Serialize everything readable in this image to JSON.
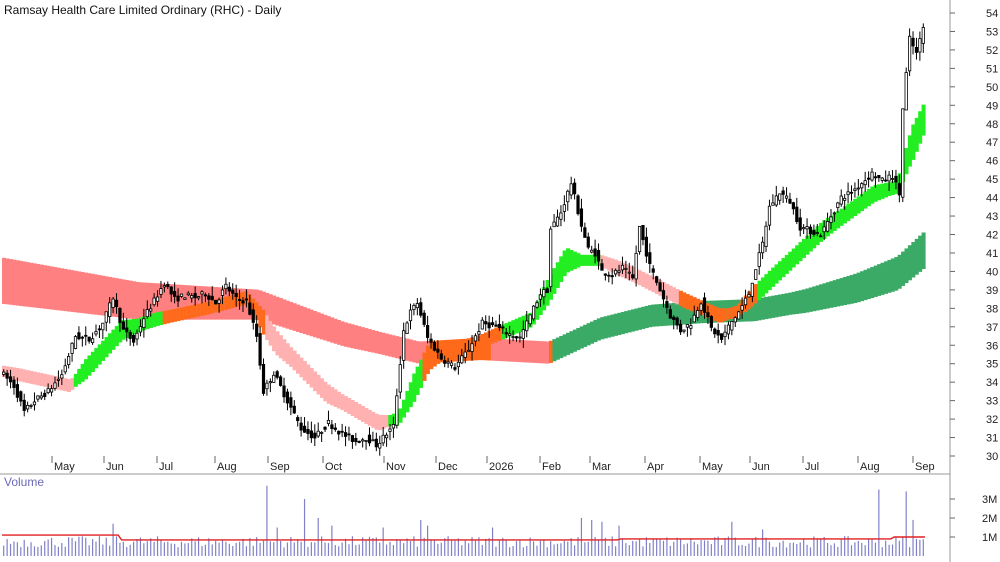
{
  "chart_data": [
    {
      "type": "candlestick",
      "title": "Ramsay Health Care Limited Ordinary (RHC) - Daily",
      "ylim": [
        30,
        54
      ],
      "y_ticks": [
        30,
        31,
        32,
        33,
        34,
        35,
        36,
        37,
        38,
        39,
        40,
        41,
        42,
        43,
        44,
        45,
        46,
        47,
        48,
        49,
        50,
        51,
        52,
        53,
        54
      ],
      "x_ticks": [
        "May",
        "Jun",
        "Jul",
        "Aug",
        "Sep",
        "Oct",
        "Nov",
        "Dec",
        "2026",
        "Feb",
        "Mar",
        "Apr",
        "May",
        "Jun",
        "Jul",
        "Aug",
        "Sep"
      ],
      "grid": false,
      "colors": {
        "price": "#000000",
        "ribbon_short_up": "#22ee22",
        "ribbon_short_down": "#ffb0b0",
        "ribbon_long_up": "#3aaa66",
        "ribbon_long_down": "#ff8080",
        "ribbon_transition": "#ff6a1a"
      },
      "price_path": [
        [
          0,
          34.6
        ],
        [
          4,
          33.8
        ],
        [
          7,
          32.4
        ],
        [
          10,
          33.0
        ],
        [
          14,
          33.5
        ],
        [
          18,
          34.4
        ],
        [
          22,
          36.5
        ],
        [
          26,
          36.3
        ],
        [
          30,
          37.2
        ],
        [
          33,
          38.6
        ],
        [
          36,
          36.8
        ],
        [
          39,
          36.2
        ],
        [
          42,
          37.5
        ],
        [
          45,
          38.4
        ],
        [
          48,
          39.4
        ],
        [
          51,
          38.5
        ],
        [
          54,
          38.7
        ],
        [
          57,
          38.6
        ],
        [
          60,
          38.8
        ],
        [
          63,
          38.3
        ],
        [
          66,
          39.2
        ],
        [
          69,
          38.5
        ],
        [
          72,
          38.4
        ],
        [
          75,
          36.5
        ],
        [
          77,
          33.5
        ],
        [
          80,
          34.5
        ],
        [
          84,
          33.0
        ],
        [
          88,
          31.5
        ],
        [
          92,
          31.0
        ],
        [
          96,
          31.8
        ],
        [
          100,
          31.2
        ],
        [
          104,
          30.8
        ],
        [
          107,
          31.0
        ],
        [
          110,
          30.6
        ],
        [
          113,
          31.2
        ],
        [
          115,
          31.6
        ],
        [
          118,
          36.8
        ],
        [
          120,
          37.8
        ],
        [
          122,
          38.3
        ],
        [
          125,
          36.4
        ],
        [
          129,
          35.3
        ],
        [
          133,
          34.8
        ],
        [
          137,
          35.8
        ],
        [
          141,
          37.2
        ],
        [
          145,
          37.0
        ],
        [
          149,
          36.6
        ],
        [
          152,
          36.4
        ],
        [
          155,
          37.6
        ],
        [
          158,
          38.8
        ],
        [
          160,
          39.0
        ],
        [
          161,
          42.3
        ],
        [
          164,
          43.2
        ],
        [
          167,
          44.8
        ],
        [
          170,
          42.5
        ],
        [
          172,
          41.2
        ],
        [
          174,
          41.0
        ],
        [
          176,
          40.0
        ],
        [
          179,
          39.8
        ],
        [
          182,
          40.2
        ],
        [
          185,
          39.6
        ],
        [
          187,
          42.4
        ],
        [
          190,
          40.3
        ],
        [
          193,
          39.0
        ],
        [
          196,
          37.6
        ],
        [
          199,
          36.8
        ],
        [
          202,
          37.2
        ],
        [
          205,
          38.4
        ],
        [
          208,
          36.9
        ],
        [
          211,
          36.3
        ],
        [
          213,
          37.0
        ],
        [
          216,
          37.8
        ],
        [
          219,
          38.8
        ],
        [
          221,
          40.2
        ],
        [
          223,
          41.5
        ],
        [
          225,
          43.5
        ],
        [
          228,
          44.3
        ],
        [
          231,
          43.8
        ],
        [
          234,
          42.4
        ],
        [
          237,
          42.2
        ],
        [
          240,
          42.0
        ],
        [
          243,
          43.0
        ],
        [
          246,
          44.0
        ],
        [
          249,
          44.3
        ],
        [
          252,
          44.8
        ],
        [
          255,
          45.3
        ],
        [
          258,
          44.9
        ],
        [
          261,
          45.2
        ],
        [
          263,
          44.2
        ],
        [
          264,
          48.8
        ],
        [
          266,
          52.6
        ],
        [
          268,
          51.8
        ],
        [
          270,
          53.2
        ]
      ],
      "ribbon_short": [
        [
          0,
          34.6
        ],
        [
          20,
          33.8
        ],
        [
          35,
          36.8
        ],
        [
          45,
          37.4
        ],
        [
          60,
          38.0
        ],
        [
          72,
          38.6
        ],
        [
          80,
          36.2
        ],
        [
          95,
          33.4
        ],
        [
          110,
          31.8
        ],
        [
          116,
          32.0
        ],
        [
          125,
          35.4
        ],
        [
          140,
          36.2
        ],
        [
          155,
          37.4
        ],
        [
          165,
          40.6
        ],
        [
          175,
          40.6
        ],
        [
          185,
          39.8
        ],
        [
          200,
          38.4
        ],
        [
          210,
          37.6
        ],
        [
          215,
          37.8
        ],
        [
          225,
          39.6
        ],
        [
          240,
          42.2
        ],
        [
          255,
          44.2
        ],
        [
          262,
          44.6
        ],
        [
          266,
          46.8
        ],
        [
          270,
          48.4
        ]
      ],
      "ribbon_long": [
        [
          0,
          39.5
        ],
        [
          40,
          38.4
        ],
        [
          75,
          38.2
        ],
        [
          100,
          36.6
        ],
        [
          122,
          35.6
        ],
        [
          140,
          35.8
        ],
        [
          160,
          35.6
        ],
        [
          175,
          36.9
        ],
        [
          190,
          37.6
        ],
        [
          205,
          37.8
        ],
        [
          220,
          37.9
        ],
        [
          235,
          38.4
        ],
        [
          250,
          39.1
        ],
        [
          262,
          39.9
        ],
        [
          270,
          41.2
        ]
      ]
    },
    {
      "type": "bar",
      "title": "Volume",
      "y_ticks": [
        "1M",
        "2M",
        "3M"
      ],
      "ylim": [
        0,
        3.6
      ],
      "colors": {
        "bars": "#8080c8",
        "average": "#e02020"
      },
      "volume_avg": 0.85,
      "volume_spikes": [
        [
          32,
          1.7
        ],
        [
          77,
          3.7
        ],
        [
          80,
          1.5
        ],
        [
          88,
          3.0
        ],
        [
          92,
          2.0
        ],
        [
          96,
          1.6
        ],
        [
          111,
          1.5
        ],
        [
          122,
          1.9
        ],
        [
          124,
          1.6
        ],
        [
          143,
          1.5
        ],
        [
          169,
          2.0
        ],
        [
          172,
          1.9
        ],
        [
          175,
          1.8
        ],
        [
          180,
          1.6
        ],
        [
          213,
          1.8
        ],
        [
          222,
          1.4
        ],
        [
          256,
          3.5
        ],
        [
          264,
          3.4
        ],
        [
          266,
          1.9
        ]
      ]
    }
  ]
}
